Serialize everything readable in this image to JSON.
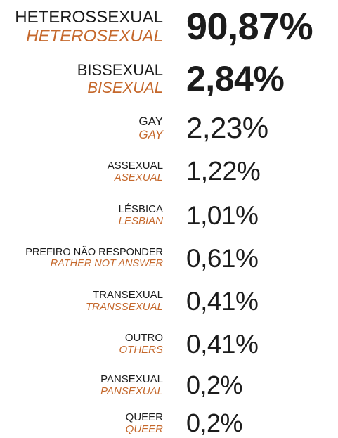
{
  "items": [
    {
      "label": "HETEROSSEXUAL",
      "label_en": "HETEROSEXUAL",
      "value": "90,87%"
    },
    {
      "label": "BISSEXUAL",
      "label_en": "BISEXUAL",
      "value": "2,84%"
    },
    {
      "label": "GAY",
      "label_en": "GAY",
      "value": "2,23%"
    },
    {
      "label": "ASSEXUAL",
      "label_en": "ASEXUAL",
      "value": "1,22%"
    },
    {
      "label": "LÉSBICA",
      "label_en": "LESBIAN",
      "value": "1,01%"
    },
    {
      "label": "PREFIRO NÃO RESPONDER",
      "label_en": "RATHER NOT ANSWER",
      "value": "0,61%"
    },
    {
      "label": "TRANSEXUAL",
      "label_en": "TRANSSEXUAL",
      "value": "0,41%"
    },
    {
      "label": "OUTRO",
      "label_en": "OTHERS",
      "value": "0,41%"
    },
    {
      "label": "PANSEXUAL",
      "label_en": "PANSEXUAL",
      "value": "0,2%"
    },
    {
      "label": "QUEER",
      "label_en": "QUEER",
      "value": "0,2%"
    }
  ]
}
